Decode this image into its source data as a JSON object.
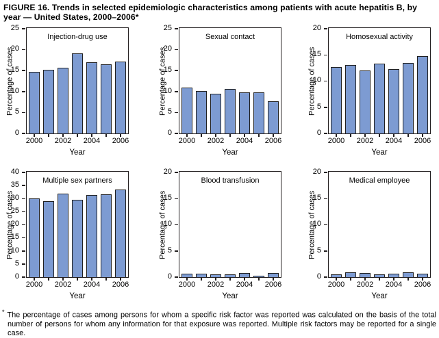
{
  "figure": {
    "title": "FIGURE 16. Trends in selected epidemiologic characteristics among patients with acute hepatitis B, by year — United States, 2000–2006*",
    "footnote_marker": "*",
    "footnote": "The percentage of cases among persons for whom a specific risk factor was reported was calculated on the basis of the total number of persons for whom any information for that exposure was reported. Multiple risk factors may be reported for a single case."
  },
  "colors": {
    "bar_fill": "#7d9bd2",
    "bar_border": "#202020",
    "axis": "#231f20",
    "text": "#000000"
  },
  "chart_data": [
    {
      "type": "bar",
      "title": "Injection-drug use",
      "categories": [
        "2000",
        "2001",
        "2002",
        "2003",
        "2004",
        "2005",
        "2006"
      ],
      "values": [
        14.6,
        15.1,
        15.7,
        19.1,
        16.9,
        16.4,
        17.1
      ],
      "xlabel": "Year",
      "ylabel": "Percentage of cases",
      "ylim": [
        0,
        25
      ],
      "ytick_step": 5,
      "xtick_labels_shown": [
        "2000",
        "2002",
        "2004",
        "2006"
      ],
      "grid": false,
      "legend": "none"
    },
    {
      "type": "bar",
      "title": "Sexual contact",
      "categories": [
        "2000",
        "2001",
        "2002",
        "2003",
        "2004",
        "2005",
        "2006"
      ],
      "values": [
        10.9,
        10.1,
        9.5,
        10.6,
        9.7,
        9.7,
        7.6
      ],
      "xlabel": "Year",
      "ylabel": "Percentage of cases",
      "ylim": [
        0,
        25
      ],
      "ytick_step": 5,
      "xtick_labels_shown": [
        "2000",
        "2002",
        "2004",
        "2006"
      ],
      "grid": false,
      "legend": "none"
    },
    {
      "type": "bar",
      "title": "Homosexual activity",
      "categories": [
        "2000",
        "2001",
        "2002",
        "2003",
        "2004",
        "2005",
        "2006"
      ],
      "values": [
        12.7,
        13.1,
        12.0,
        13.3,
        12.3,
        13.5,
        14.7
      ],
      "xlabel": "Year",
      "ylabel": "Percentage of cases",
      "ylim": [
        0,
        20
      ],
      "ytick_step": 5,
      "xtick_labels_shown": [
        "2000",
        "2002",
        "2004",
        "2006"
      ],
      "grid": false,
      "legend": "none"
    },
    {
      "type": "bar",
      "title": "Multiple sex partners",
      "categories": [
        "2000",
        "2001",
        "2002",
        "2003",
        "2004",
        "2005",
        "2006"
      ],
      "values": [
        30.0,
        29.0,
        31.9,
        29.5,
        31.3,
        31.7,
        33.3
      ],
      "xlabel": "Year",
      "ylabel": "Percentage of cases",
      "ylim": [
        0,
        40
      ],
      "ytick_step": 5,
      "xtick_labels_shown": [
        "2000",
        "2002",
        "2004",
        "2006"
      ],
      "grid": false,
      "legend": "none"
    },
    {
      "type": "bar",
      "title": "Blood transfusion",
      "categories": [
        "2000",
        "2001",
        "2002",
        "2003",
        "2004",
        "2005",
        "2006"
      ],
      "values": [
        0.6,
        0.6,
        0.5,
        0.5,
        0.7,
        0.3,
        0.7
      ],
      "xlabel": "Year",
      "ylabel": "Percentage of cases",
      "ylim": [
        0,
        20
      ],
      "ytick_step": 5,
      "xtick_labels_shown": [
        "2000",
        "2002",
        "2004",
        "2006"
      ],
      "grid": false,
      "legend": "none"
    },
    {
      "type": "bar",
      "title": "Medical employee",
      "categories": [
        "2000",
        "2001",
        "2002",
        "2003",
        "2004",
        "2005",
        "2006"
      ],
      "values": [
        0.5,
        0.9,
        0.7,
        0.55,
        0.6,
        0.9,
        0.6
      ],
      "xlabel": "Year",
      "ylabel": "Percentage of cases",
      "ylim": [
        0,
        20
      ],
      "ytick_step": 5,
      "xtick_labels_shown": [
        "2000",
        "2002",
        "2004",
        "2006"
      ],
      "grid": false,
      "legend": "none"
    }
  ]
}
